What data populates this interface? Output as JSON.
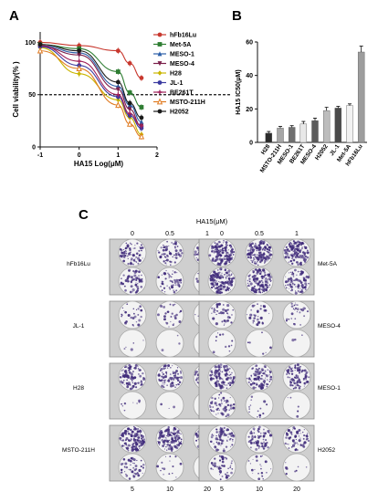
{
  "panels": {
    "a": "A",
    "b": "B",
    "c": "C"
  },
  "chart_data": [
    {
      "type": "line",
      "panel": "A",
      "xlabel": "HA15 Log(μM)",
      "ylabel": "Cell viability(% )",
      "xlim": [
        -1,
        2
      ],
      "ylim": [
        0,
        110
      ],
      "xticks": [
        "-1",
        "0",
        "1",
        "2"
      ],
      "yticks": [
        "0",
        "50",
        "100"
      ],
      "grid": false,
      "legend": "right",
      "reference_line": {
        "y": 50,
        "style": "dashed"
      },
      "x": [
        -1,
        0,
        1,
        1.3,
        1.6
      ],
      "series": [
        {
          "name": "hFb16Lu",
          "color": "#c8382e",
          "marker": "circle",
          "values": [
            100,
            97,
            92,
            80,
            66
          ]
        },
        {
          "name": "Met-5A",
          "color": "#2e7d32",
          "marker": "square",
          "values": [
            98,
            94,
            72,
            52,
            38
          ]
        },
        {
          "name": "MESO-1",
          "color": "#2a5ea8",
          "marker": "triangle-up",
          "values": [
            97,
            90,
            58,
            40,
            24
          ]
        },
        {
          "name": "MESO-4",
          "color": "#7a1f4a",
          "marker": "triangle-down",
          "values": [
            96,
            88,
            55,
            36,
            20
          ]
        },
        {
          "name": "H28",
          "color": "#c9b500",
          "marker": "diamond",
          "values": [
            95,
            70,
            45,
            28,
            12
          ]
        },
        {
          "name": "JL-1",
          "color": "#3a3aa0",
          "marker": "circle",
          "values": [
            96,
            78,
            48,
            30,
            18
          ]
        },
        {
          "name": "BE261T",
          "color": "#a0205a",
          "marker": "plus",
          "values": [
            97,
            82,
            50,
            32,
            20
          ]
        },
        {
          "name": "MSTO-211H",
          "color": "#e07a20",
          "marker": "triangle-up-open",
          "values": [
            92,
            75,
            40,
            22,
            10
          ]
        },
        {
          "name": "H2052",
          "color": "#1a1a1a",
          "marker": "circle",
          "values": [
            98,
            92,
            62,
            42,
            28
          ]
        }
      ]
    },
    {
      "type": "bar",
      "panel": "B",
      "ylabel": "HA15 IC50(μM)",
      "ylim": [
        0,
        60
      ],
      "yticks": [
        "0",
        "20",
        "40",
        "60"
      ],
      "grid": false,
      "categories": [
        "H28",
        "MSTO-211H",
        "MESO-1",
        "BE261T",
        "MESO-4",
        "H2052",
        "JL-1",
        "Met-5A",
        "hFb16Lu"
      ],
      "values": [
        5.5,
        8.5,
        9.0,
        11.0,
        13.0,
        19.0,
        20.5,
        22.0,
        54.0
      ],
      "errors": [
        1.0,
        1.0,
        1.0,
        1.5,
        1.5,
        2.0,
        1.0,
        1.0,
        3.5
      ],
      "colors": [
        "#2b2b2b",
        "#a6a6a6",
        "#6f6f6f",
        "#e8e8e8",
        "#5c5c5c",
        "#bdbdbd",
        "#4a4a4a",
        "#f2f2f2",
        "#9d9d9d"
      ]
    }
  ],
  "panel_c": {
    "concentration_title": "HA15(μM)",
    "top_doses": [
      "0",
      "0.5",
      "1"
    ],
    "bottom_doses": [
      "5",
      "10",
      "20"
    ],
    "left_labels": [
      "hFb16Lu",
      "JL-1",
      "H28",
      "MSTO-211H"
    ],
    "right_labels": [
      "Met-5A",
      "MESO-4",
      "MESO-1",
      "H2052"
    ],
    "colony_density": {
      "left": [
        [
          0.5,
          0.45,
          0.4,
          0.4,
          0.35,
          0.3
        ],
        [
          0.2,
          0.18,
          0.15,
          0.03,
          0.02,
          0.01
        ],
        [
          0.6,
          0.5,
          0.45,
          0.05,
          0.02,
          0.01
        ],
        [
          0.9,
          0.8,
          0.7,
          0.3,
          0.1,
          0.03
        ]
      ],
      "right": [
        [
          1.0,
          0.95,
          0.9,
          0.9,
          0.85,
          0.6
        ],
        [
          0.25,
          0.2,
          0.18,
          0.08,
          0.04,
          0.02
        ],
        [
          0.75,
          0.65,
          0.6,
          0.35,
          0.1,
          0.03
        ],
        [
          0.55,
          0.45,
          0.4,
          0.3,
          0.15,
          0.05
        ]
      ]
    },
    "stain_color": "#3f2a7a"
  }
}
